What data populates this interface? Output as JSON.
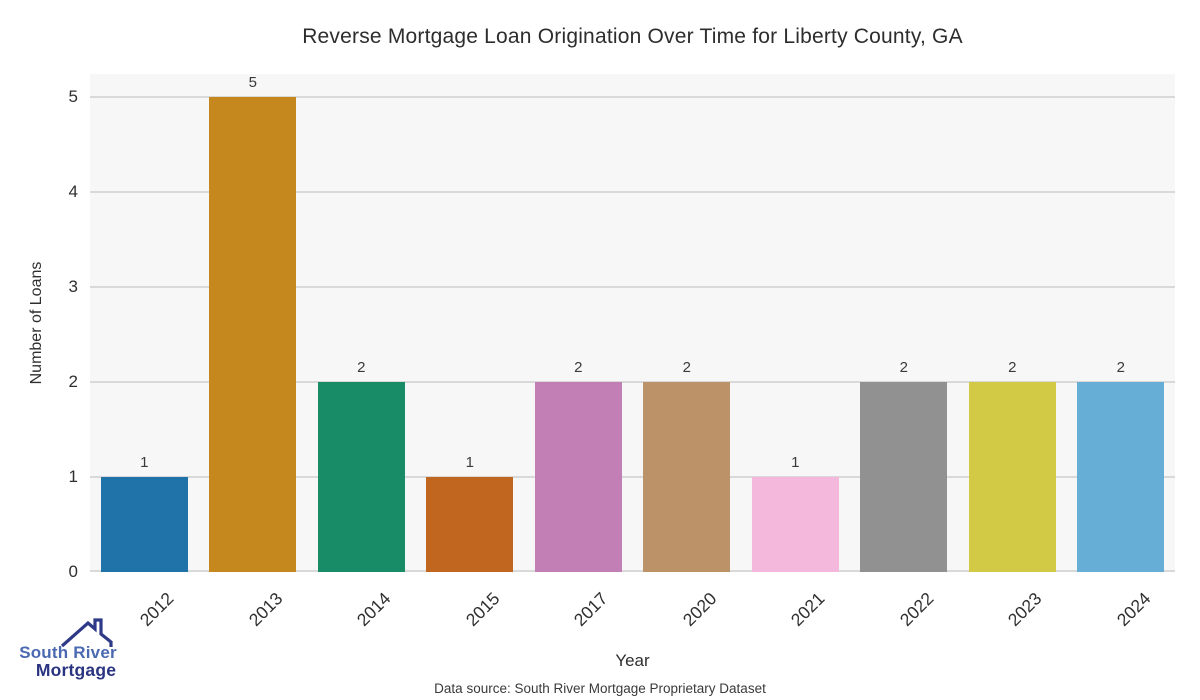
{
  "footer": {
    "source_note": "Data source: South River Mortgage Proprietary Dataset"
  },
  "logo": {
    "name": "South River Mortgage",
    "line1": "South River",
    "line2": "Mortgage",
    "roof_color": "#2e3a87",
    "line1_color": "#4b69b1",
    "line2_color": "#2a3480"
  },
  "chart_data": {
    "type": "bar",
    "title": "Reverse Mortgage Loan Origination Over Time for Liberty County, GA",
    "xlabel": "Year",
    "ylabel": "Number of Loans",
    "categories": [
      "2012",
      "2013",
      "2014",
      "2015",
      "2017",
      "2020",
      "2021",
      "2022",
      "2023",
      "2024"
    ],
    "values": [
      1,
      5,
      2,
      1,
      2,
      2,
      1,
      2,
      2,
      2
    ],
    "bar_colors": [
      "#1f73a8",
      "#c4881f",
      "#178c66",
      "#c0661f",
      "#c27fb5",
      "#bc9269",
      "#f4b8dd",
      "#919191",
      "#d2c945",
      "#66aed6"
    ],
    "ylim": [
      0,
      5
    ],
    "yticks": [
      0,
      1,
      2,
      3,
      4,
      5
    ],
    "grid": true,
    "legend": "none",
    "plot_background": "#f7f7f7",
    "gridline_color": "#d9d9d9",
    "text_color": "#2f2f2f"
  }
}
